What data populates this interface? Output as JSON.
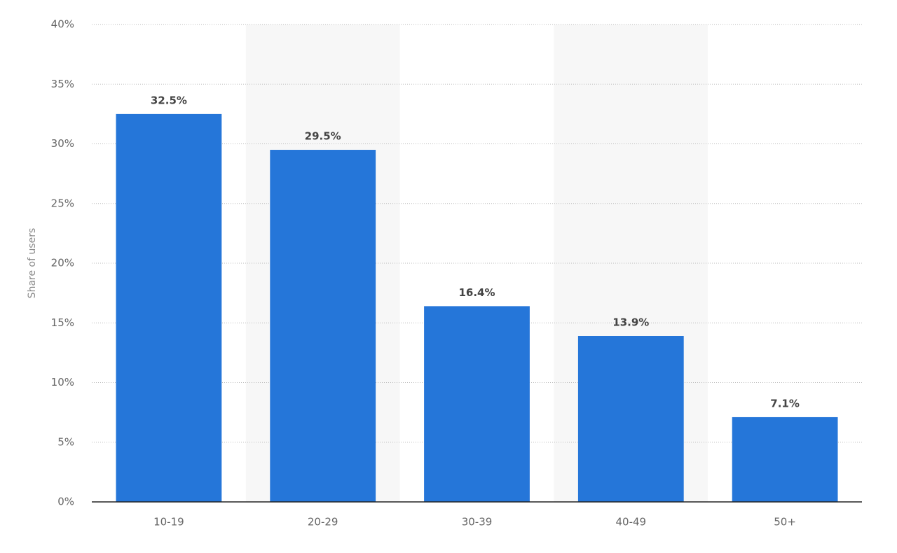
{
  "chart_data": {
    "type": "bar",
    "y_label": "Share of users",
    "categories": [
      "10-19",
      "20-29",
      "30-39",
      "40-49",
      "50+"
    ],
    "values": [
      32.5,
      29.5,
      16.4,
      13.9,
      7.1
    ],
    "value_labels": [
      "32.5%",
      "29.5%",
      "16.4%",
      "13.9%",
      "7.1%"
    ],
    "color": "#2576d9",
    "ylim": [
      0,
      40
    ],
    "yticks": [
      {
        "value": 0,
        "label": "0%"
      },
      {
        "value": 5,
        "label": "5%"
      },
      {
        "value": 10,
        "label": "10%"
      },
      {
        "value": 15,
        "label": "15%"
      },
      {
        "value": 20,
        "label": "20%"
      },
      {
        "value": 25,
        "label": "25%"
      },
      {
        "value": 30,
        "label": "30%"
      },
      {
        "value": 35,
        "label": "35%"
      },
      {
        "value": 40,
        "label": "40%"
      }
    ],
    "grid": true
  }
}
